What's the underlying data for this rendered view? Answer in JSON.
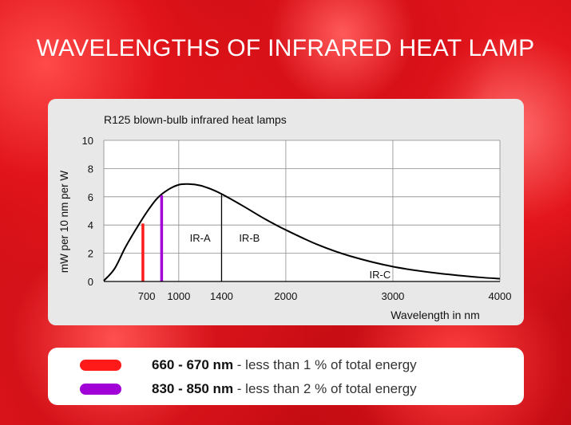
{
  "page": {
    "title": "WAVELENGTHS OF INFRARED HEAT LAMP"
  },
  "chart_data": {
    "type": "line",
    "title": "R125 blown-bulb infrared heat lamps",
    "xlabel": "Wavelength in nm",
    "ylabel": "mW per 10 nm per W",
    "xlim": [
      300,
      4000
    ],
    "ylim": [
      0,
      10
    ],
    "x_ticks": [
      700,
      1000,
      1400,
      2000,
      3000,
      4000
    ],
    "x_tick_labels": [
      "700",
      "1000",
      "1400",
      "2000",
      "3000",
      "4000"
    ],
    "x_grid": [
      1000,
      2000,
      3000,
      4000
    ],
    "y_ticks": [
      0,
      2,
      4,
      6,
      8,
      10
    ],
    "y_tick_labels": [
      "0",
      "2",
      "4",
      "6",
      "8",
      "10"
    ],
    "grid": true,
    "series": [
      {
        "x": [
          300,
          400,
          500,
          600,
          700,
          800,
          900,
          1000,
          1100,
          1200,
          1300,
          1400,
          1600,
          1800,
          2000,
          2300,
          2600,
          3000,
          3400,
          3800,
          4000
        ],
        "y": [
          0.05,
          0.9,
          2.4,
          3.7,
          4.9,
          5.9,
          6.5,
          6.85,
          6.9,
          6.8,
          6.55,
          6.2,
          5.35,
          4.45,
          3.65,
          2.6,
          1.8,
          1.05,
          0.6,
          0.3,
          0.2
        ]
      }
    ],
    "bands": [
      {
        "x": 665,
        "y": 4.1,
        "color": "#ff1a1a"
      },
      {
        "x": 840,
        "y": 6.1,
        "color": "#a100d6"
      }
    ],
    "boundary_line": {
      "x": 1400,
      "y": 6.2
    },
    "annotations": [
      {
        "text": "IR-A",
        "x": 1200,
        "y": 3.1
      },
      {
        "text": "IR-B",
        "x": 1660,
        "y": 3.1
      },
      {
        "text": "IR-C",
        "x": 2880,
        "y": 0.5
      }
    ]
  },
  "legend": {
    "items": [
      {
        "bold": "660 - 670 nm",
        "rest": " - less than 1 % of total energy",
        "color": "#ff1a1a"
      },
      {
        "bold": "830 - 850 nm",
        "rest": " - less than 2 % of total energy",
        "color": "#a100d6"
      }
    ]
  }
}
